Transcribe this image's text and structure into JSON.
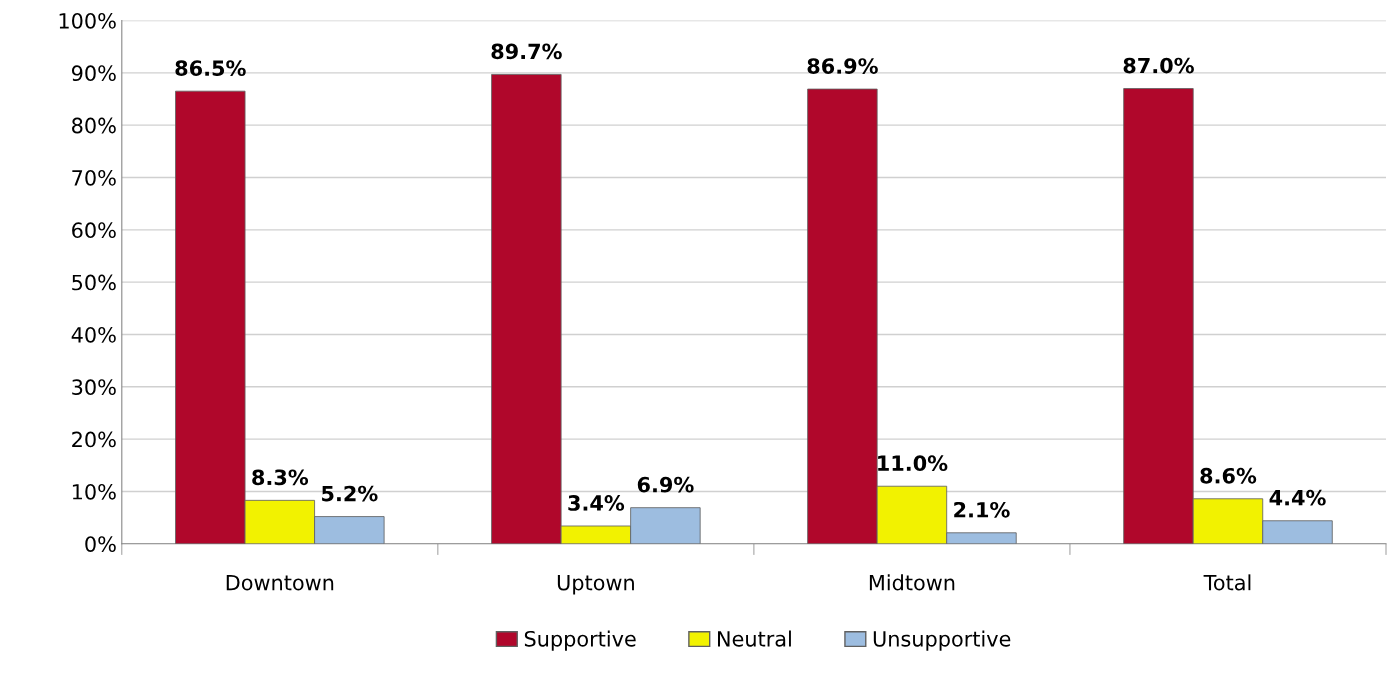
{
  "chart_data": {
    "type": "bar",
    "categories": [
      "Downtown",
      "Uptown",
      "Midtown",
      "Total"
    ],
    "series": [
      {
        "name": "Supportive",
        "color": "#b0072b",
        "values": [
          86.5,
          89.7,
          86.9,
          87.0
        ],
        "value_labels": [
          "86.5%",
          "89.7%",
          "86.9%",
          "87.0%"
        ]
      },
      {
        "name": "Neutral",
        "color": "#f2f200",
        "values": [
          8.3,
          3.4,
          11.0,
          8.6
        ],
        "value_labels": [
          "8.3%",
          "3.4%",
          "11.0%",
          "8.6%"
        ]
      },
      {
        "name": "Unsupportive",
        "color": "#9dbde0",
        "values": [
          5.2,
          6.9,
          2.1,
          4.4
        ],
        "value_labels": [
          "5.2%",
          "6.9%",
          "2.1%",
          "4.4%"
        ]
      }
    ],
    "ylim": [
      0,
      100
    ],
    "yticks": [
      {
        "value": 0,
        "label": "0%"
      },
      {
        "value": 10,
        "label": "10%"
      },
      {
        "value": 20,
        "label": "20%"
      },
      {
        "value": 30,
        "label": "30%"
      },
      {
        "value": 40,
        "label": "40%"
      },
      {
        "value": 50,
        "label": "50%"
      },
      {
        "value": 60,
        "label": "60%"
      },
      {
        "value": 70,
        "label": "70%"
      },
      {
        "value": 80,
        "label": "80%"
      },
      {
        "value": 90,
        "label": "90%"
      },
      {
        "value": 100,
        "label": "100%"
      }
    ],
    "grid": "y",
    "legend": "bottom"
  }
}
